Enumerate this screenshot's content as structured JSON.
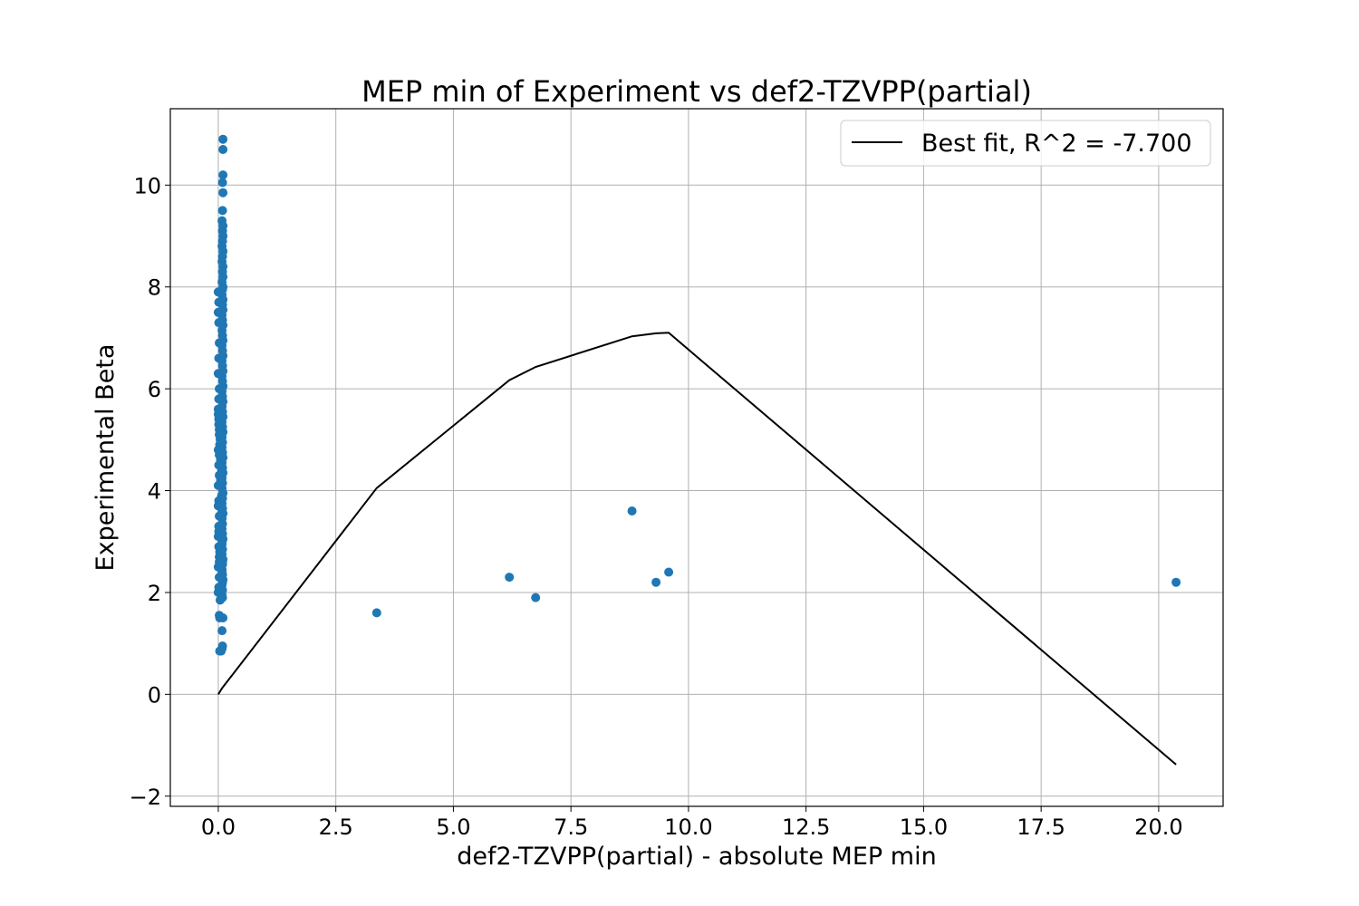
{
  "chart_data": {
    "type": "scatter",
    "title": "MEP min of Experiment vs def2-TZVPP(partial)",
    "xlabel": "def2-TZVPP(partial) - absolute MEP min",
    "ylabel": "Experimental Beta",
    "xlim": [
      -1.02,
      21.37
    ],
    "ylim": [
      -2.2,
      11.5
    ],
    "xticks": [
      0.0,
      2.5,
      5.0,
      7.5,
      10.0,
      12.5,
      15.0,
      17.5,
      20.0
    ],
    "xtick_labels": [
      "0.0",
      "2.5",
      "5.0",
      "7.5",
      "10.0",
      "12.5",
      "15.0",
      "17.5",
      "20.0"
    ],
    "yticks": [
      -2,
      0,
      2,
      4,
      6,
      8,
      10
    ],
    "ytick_labels": [
      "−2",
      "0",
      "2",
      "4",
      "6",
      "8",
      "10"
    ],
    "grid": true,
    "legend_position": "top-right",
    "colors": {
      "points": "#1f77b4",
      "fit_line": "#000000",
      "grid": "#b0b0b0"
    },
    "series": [
      {
        "kind": "scatter",
        "x": [
          0.1,
          0.1,
          0.1,
          0.09,
          0.1,
          0.09,
          0.08,
          0.1,
          0.09,
          0.1,
          0.09,
          0.08,
          0.1,
          0.09,
          0.08,
          0.1,
          0.09,
          0.1,
          0.08,
          0.1,
          0.09,
          0.08,
          0.1,
          0.09,
          0.1,
          0.08,
          0.09,
          0.1,
          0.08,
          0.09,
          0.1,
          0.08,
          0.09,
          0.1,
          0.08,
          0.09,
          0.1,
          0.08,
          0.09,
          0.1,
          0.08,
          0.09,
          0.1,
          0.08,
          0.09,
          0.1,
          0.08,
          0.09,
          0.1,
          0.08,
          0.09,
          0.08,
          0.09,
          0.1,
          0.08,
          0.09,
          0.1,
          0.08,
          0.09,
          0.08,
          0.1,
          0.09,
          0.08,
          0.09,
          0.1,
          0.08,
          0.09,
          0.08,
          0.09,
          0.1,
          0.08,
          0.09,
          0.08,
          0.1,
          0.09,
          0.08,
          0.09,
          0.1,
          0.08,
          0.09,
          0.08,
          0.09,
          0.1,
          0.08,
          0.09,
          0.08,
          0.06,
          0.09,
          0.08,
          0.09,
          0.07,
          0.08,
          0.06,
          0.08,
          0.07,
          0.05,
          0.07,
          0.05,
          0.03,
          0.04,
          0.02,
          0.01,
          0.0,
          0.0,
          0.01,
          0.0,
          0.01,
          0.02,
          0.01,
          0.0,
          0.02,
          0.01,
          0.0,
          0.01,
          0.02,
          0.0,
          0.01,
          0.02,
          0.0,
          0.01,
          0.02,
          0.01,
          0.0,
          0.01,
          0.02,
          0.0,
          0.02,
          0.01,
          0.0,
          0.02,
          0.01,
          0.0,
          0.02,
          0.03,
          0.04,
          0.03,
          0.02,
          0.03,
          3.37,
          6.19,
          6.75,
          8.8,
          9.31,
          9.58,
          20.37
        ],
        "y": [
          10.9,
          10.7,
          10.2,
          10.05,
          9.85,
          9.5,
          9.3,
          9.2,
          9.1,
          9.0,
          8.9,
          8.8,
          8.7,
          8.6,
          8.5,
          8.4,
          8.3,
          8.2,
          8.1,
          8.0,
          7.95,
          7.85,
          7.75,
          7.65,
          7.55,
          7.45,
          7.35,
          7.25,
          7.15,
          7.05,
          6.95,
          6.85,
          6.75,
          6.65,
          6.55,
          6.45,
          6.35,
          6.25,
          6.15,
          6.05,
          5.95,
          5.85,
          5.75,
          5.65,
          5.55,
          5.45,
          5.35,
          5.25,
          5.15,
          5.05,
          4.95,
          4.85,
          4.75,
          4.65,
          4.55,
          4.45,
          4.35,
          4.25,
          4.15,
          4.05,
          3.95,
          3.85,
          3.75,
          3.65,
          3.55,
          3.45,
          3.35,
          3.25,
          3.15,
          3.05,
          2.95,
          2.85,
          2.75,
          2.65,
          2.55,
          2.45,
          2.35,
          2.25,
          2.15,
          2.05,
          1.95,
          1.9,
          1.5,
          1.25,
          0.95,
          0.9,
          0.85,
          2.2,
          2.4,
          2.6,
          2.8,
          3.0,
          3.3,
          3.6,
          3.9,
          4.2,
          4.4,
          4.6,
          4.9,
          5.0,
          5.2,
          5.4,
          5.6,
          7.9,
          7.7,
          7.5,
          7.3,
          6.9,
          6.6,
          6.3,
          6.0,
          5.8,
          5.5,
          5.3,
          5.1,
          4.8,
          4.5,
          4.3,
          4.1,
          3.8,
          3.5,
          3.3,
          3.1,
          2.9,
          2.7,
          2.5,
          2.3,
          2.1,
          2.0,
          2.6,
          3.2,
          3.7,
          4.7,
          2.8,
          1.85,
          1.5,
          1.55,
          0.85,
          1.6,
          2.3,
          1.9,
          3.6,
          2.2,
          2.4,
          2.2
        ]
      },
      {
        "kind": "line",
        "name": "Best fit, R^2 = -7.700",
        "x": [
          0.0,
          0.08,
          3.37,
          6.19,
          6.75,
          8.8,
          9.31,
          9.58,
          20.37
        ],
        "y": [
          0.0,
          0.12,
          4.05,
          6.17,
          6.43,
          7.03,
          7.09,
          7.1,
          -1.38
        ]
      }
    ]
  }
}
